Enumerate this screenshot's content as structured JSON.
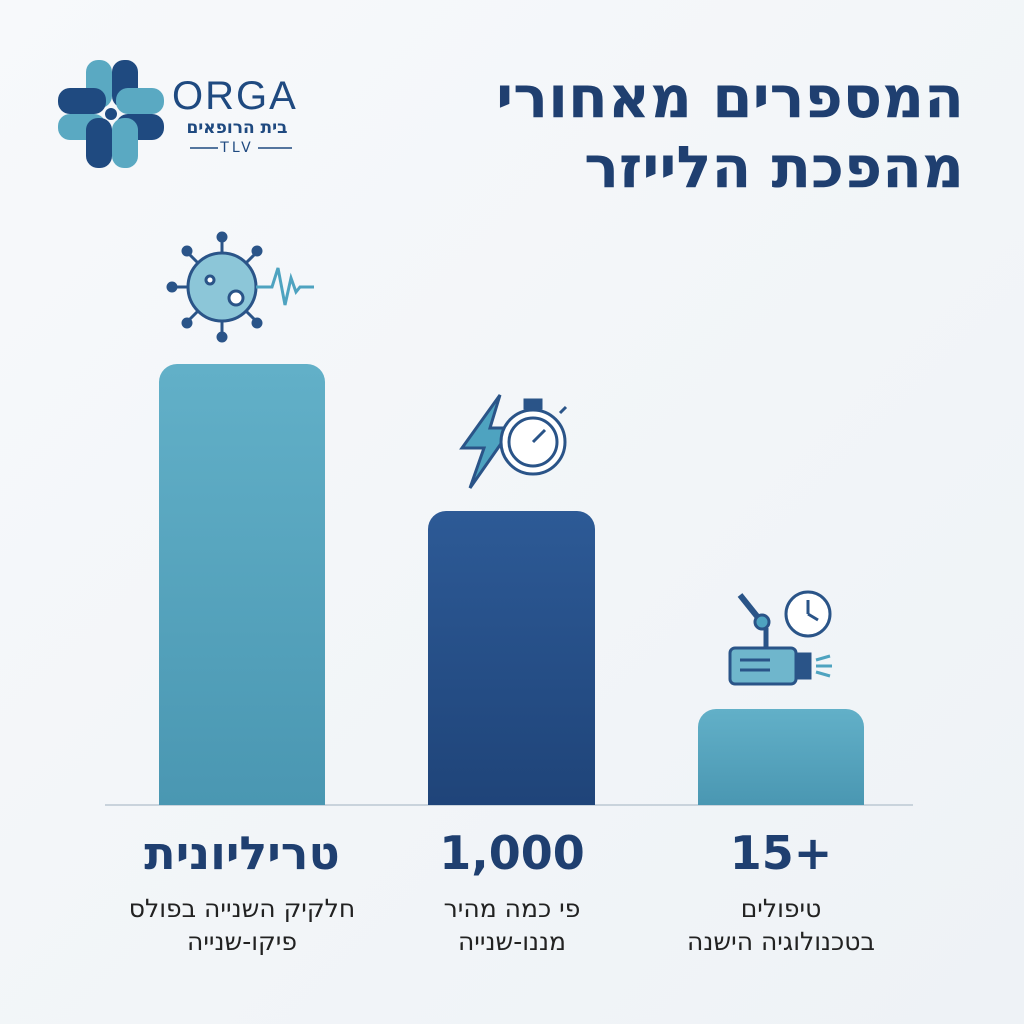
{
  "logo": {
    "name": "ORGA",
    "subtitle": "בית הרופאים",
    "city": "TLV"
  },
  "title": [
    "המספרים מאחורי",
    "מהפכת הלייזר"
  ],
  "stats": [
    {
      "value": "טריליונית",
      "caption": [
        "חלקיק השנייה בפולס",
        "פיקו-שנייה"
      ]
    },
    {
      "value": "1,000",
      "caption": [
        "פי כמה מהיר",
        "מננו-שנייה"
      ]
    },
    {
      "value": "15+",
      "caption": [
        "טיפולים",
        "בטכנולוגיה הישנה"
      ]
    }
  ]
}
